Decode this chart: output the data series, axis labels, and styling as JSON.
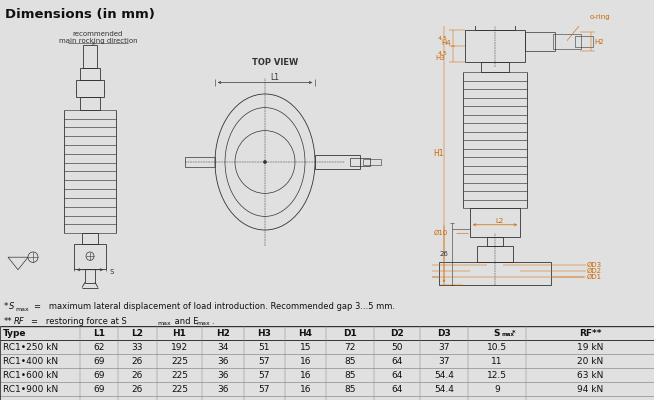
{
  "title": "Dimensions (in mm)",
  "title_bg": "#c8c8c8",
  "bg_color": "#e0e0e0",
  "table_header": [
    "Type",
    "L1",
    "L2",
    "H1",
    "H2",
    "H3",
    "H4",
    "D1",
    "D2",
    "D3",
    "Smax*",
    "RF**"
  ],
  "table_rows": [
    [
      "RC1•250 kN",
      "62",
      "33",
      "192",
      "34",
      "51",
      "15",
      "72",
      "50",
      "37",
      "10.5",
      "19 kN"
    ],
    [
      "RC1•400 kN",
      "69",
      "26",
      "225",
      "36",
      "57",
      "16",
      "85",
      "64",
      "37",
      "11",
      "20 kN"
    ],
    [
      "RC1•600 kN",
      "69",
      "26",
      "225",
      "36",
      "57",
      "16",
      "85",
      "64",
      "54.4",
      "12.5",
      "63 kN"
    ],
    [
      "RC1•900 kN",
      "69",
      "26",
      "225",
      "36",
      "57",
      "16",
      "85",
      "64",
      "54.4",
      "9",
      "94 kN"
    ]
  ],
  "line_color": "#333333",
  "dim_color": "#cc6600",
  "text_color": "#111111"
}
